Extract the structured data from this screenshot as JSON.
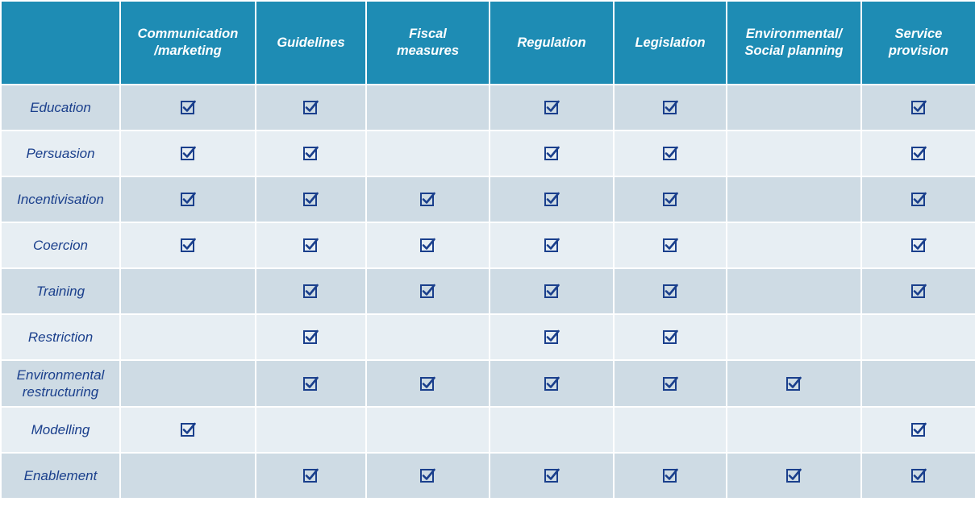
{
  "table": {
    "columns": [
      "",
      "Communication\n/marketing",
      "Guidelines",
      "Fiscal\nmeasures",
      "Regulation",
      "Legislation",
      "Environmental/\nSocial planning",
      "Service\nprovision"
    ],
    "rows": [
      {
        "label": "Education",
        "checks": [
          true,
          true,
          false,
          true,
          true,
          false,
          true
        ]
      },
      {
        "label": "Persuasion",
        "checks": [
          true,
          true,
          false,
          true,
          true,
          false,
          true
        ]
      },
      {
        "label": "Incentivisation",
        "checks": [
          true,
          true,
          true,
          true,
          true,
          false,
          true
        ]
      },
      {
        "label": "Coercion",
        "checks": [
          true,
          true,
          true,
          true,
          true,
          false,
          true
        ]
      },
      {
        "label": "Training",
        "checks": [
          false,
          true,
          true,
          true,
          true,
          false,
          true
        ]
      },
      {
        "label": "Restriction",
        "checks": [
          false,
          true,
          false,
          true,
          true,
          false,
          false
        ]
      },
      {
        "label": "Environmental\nrestructuring",
        "checks": [
          false,
          true,
          true,
          true,
          true,
          true,
          false
        ]
      },
      {
        "label": "Modelling",
        "checks": [
          true,
          false,
          false,
          false,
          false,
          false,
          true
        ]
      },
      {
        "label": "Enablement",
        "checks": [
          false,
          true,
          true,
          true,
          true,
          true,
          true
        ]
      }
    ]
  },
  "colors": {
    "header_bg": "#1e8cb4",
    "row_odd_bg": "#cedbe4",
    "row_even_bg": "#e7eef3",
    "row_label_text": "#1a3f8c",
    "check_color": "#1a3f8c"
  },
  "icons": {
    "check": "checked-box-icon"
  }
}
